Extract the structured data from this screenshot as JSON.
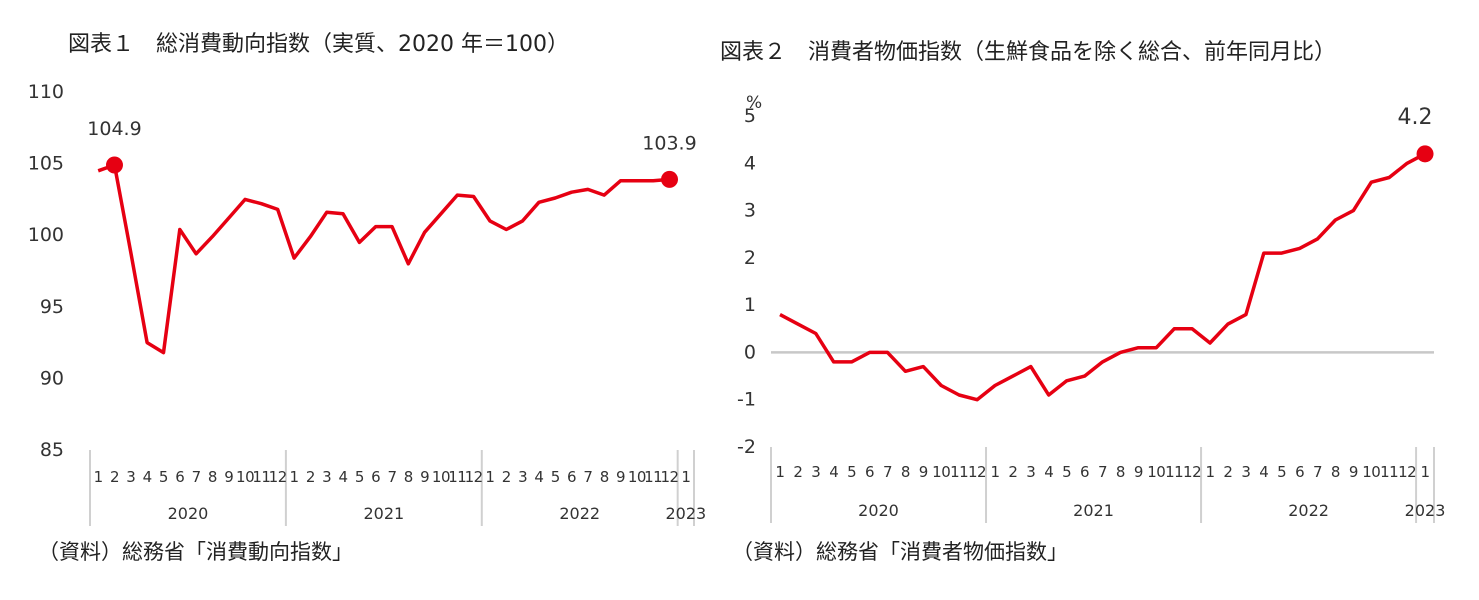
{
  "panel1": {
    "title": "図表１　総消費動向指数（実質、2020 年＝100）",
    "source": "（資料）総務省「消費動向指数」",
    "chart_data": {
      "type": "line",
      "series": [
        {
          "values": [
            104.5,
            104.9,
            98.8,
            92.5,
            91.8,
            100.4,
            98.7,
            99.9,
            101.2,
            102.5,
            102.2,
            101.8,
            98.4,
            99.9,
            101.6,
            101.5,
            99.5,
            100.6,
            100.6,
            98.0,
            100.2,
            101.5,
            102.8,
            102.7,
            101.0,
            100.4,
            101.0,
            102.3,
            102.6,
            103.0,
            103.2,
            102.8,
            103.8,
            103.8,
            103.8,
            103.9
          ]
        }
      ],
      "ylim": [
        85,
        110
      ],
      "yticks": [
        85,
        90,
        95,
        100,
        105,
        110
      ],
      "month_labels": [
        "1",
        "2",
        "3",
        "4",
        "5",
        "6",
        "7",
        "8",
        "9",
        "10",
        "11",
        "12",
        "1",
        "2",
        "3",
        "4",
        "5",
        "6",
        "7",
        "8",
        "9",
        "10",
        "11",
        "12",
        "1",
        "2",
        "3",
        "4",
        "5",
        "6",
        "7",
        "8",
        "9",
        "10",
        "11",
        "12",
        "1"
      ],
      "year_labels": [
        "2020",
        "2021",
        "2022",
        "2023"
      ],
      "data_labels": [
        {
          "index": 1,
          "text": "104.9"
        },
        {
          "index": 35,
          "text": "103.9"
        }
      ],
      "line_color": "#e60012",
      "grid": false
    }
  },
  "panel2": {
    "title": "図表２　消費者物価指数（生鮮食品を除く総合、前年同月比）",
    "source": "（資料）総務省「消費者物価指数」",
    "chart_data": {
      "type": "line",
      "series": [
        {
          "values": [
            0.8,
            0.6,
            0.4,
            -0.2,
            -0.2,
            0.0,
            0.0,
            -0.4,
            -0.3,
            -0.7,
            -0.9,
            -1.0,
            -0.7,
            -0.5,
            -0.3,
            -0.9,
            -0.6,
            -0.5,
            -0.2,
            0.0,
            0.1,
            0.1,
            0.5,
            0.5,
            0.2,
            0.6,
            0.8,
            2.1,
            2.1,
            2.2,
            2.4,
            2.8,
            3.0,
            3.6,
            3.7,
            4.0,
            4.2
          ]
        }
      ],
      "unit": "%",
      "ylim": [
        -2,
        5
      ],
      "yticks": [
        -2,
        -1,
        0,
        1,
        2,
        3,
        4,
        5
      ],
      "month_labels": [
        "1",
        "2",
        "3",
        "4",
        "5",
        "6",
        "7",
        "8",
        "9",
        "10",
        "11",
        "12",
        "1",
        "2",
        "3",
        "4",
        "5",
        "6",
        "7",
        "8",
        "9",
        "10",
        "11",
        "12",
        "1",
        "2",
        "3",
        "4",
        "5",
        "6",
        "7",
        "8",
        "9",
        "10",
        "11",
        "12",
        "1"
      ],
      "year_labels": [
        "2020",
        "2021",
        "2022",
        "2023"
      ],
      "data_labels": [
        {
          "index": 36,
          "text": "4.2"
        }
      ],
      "line_color": "#e60012",
      "zero_line_color": "#c8c8c8",
      "grid": false
    }
  }
}
